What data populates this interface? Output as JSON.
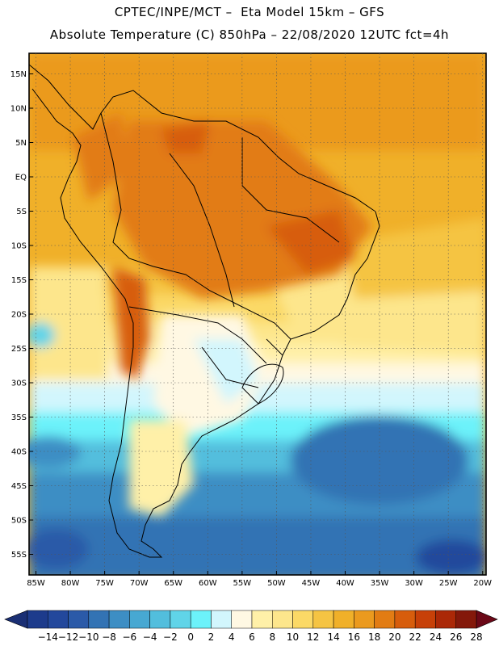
{
  "header": {
    "title_line1": "CPTEC/INPE/MCT –  Eta Model 15km – GFS",
    "title_line2": "Absolute Temperature (C) 850hPa – 22/08/2020 12UTC fct=4h"
  },
  "map": {
    "lat_ticks": [
      "15N",
      "10N",
      "5N",
      "EQ",
      "5S",
      "10S",
      "15S",
      "20S",
      "25S",
      "30S",
      "35S",
      "40S",
      "45S",
      "50S",
      "55S"
    ],
    "lon_ticks": [
      "85W",
      "80W",
      "75W",
      "70W",
      "65W",
      "60W",
      "55W",
      "50W",
      "45W",
      "40W",
      "35W",
      "30W",
      "25W",
      "20W"
    ]
  },
  "colorbar": {
    "labels": [
      "-14",
      "-12",
      "-10",
      "-8",
      "-6",
      "-4",
      "-2",
      "0",
      "2",
      "4",
      "6",
      "8",
      "10",
      "12",
      "14",
      "16",
      "18",
      "20",
      "22",
      "24",
      "26",
      "28"
    ],
    "colors": [
      "#1d3b8c",
      "#23489c",
      "#2b5aa8",
      "#3373b4",
      "#3d8ec4",
      "#47a8d2",
      "#52bedd",
      "#60d4e8",
      "#6cf2fa",
      "#d2f6fd",
      "#fff8e3",
      "#fff0a8",
      "#fde68c",
      "#fbd966",
      "#f5c443",
      "#f0b029",
      "#eb9a1e",
      "#e27c13",
      "#d75d0c",
      "#c74008",
      "#ab2807",
      "#84180a"
    ],
    "low_arrow_color": "#1a2f74",
    "high_arrow_color": "#6b0817"
  }
}
